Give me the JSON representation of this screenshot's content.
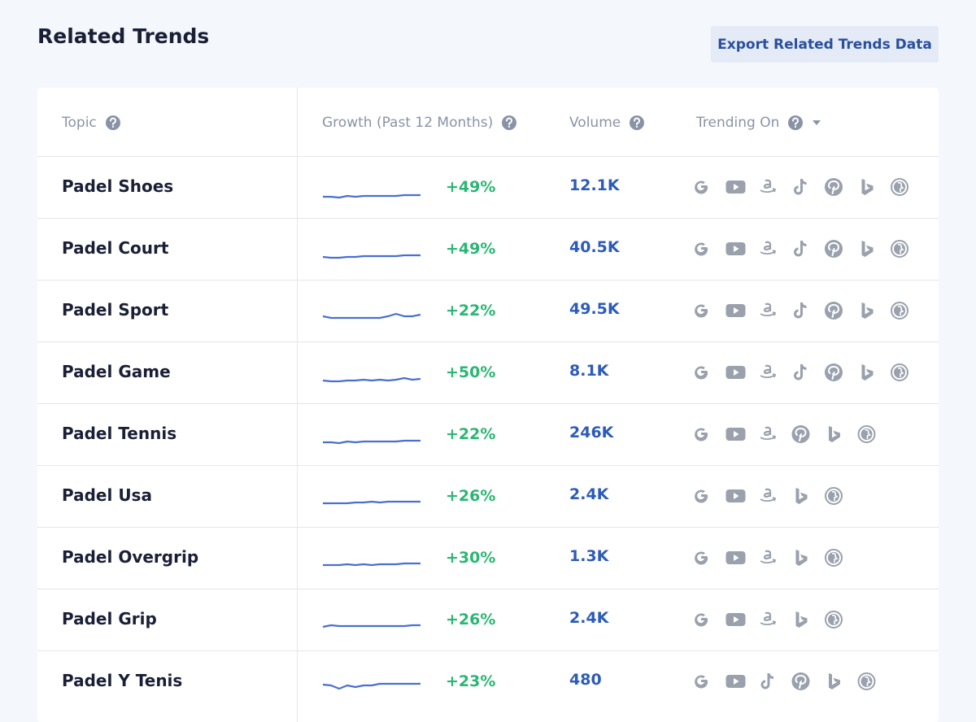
{
  "header": {
    "title": "Related Trends",
    "export_button": "Export Related Trends Data"
  },
  "table": {
    "columns": [
      "Topic",
      "Growth (Past 12 Months)",
      "Volume",
      "Trending On"
    ],
    "rows": [
      {
        "topic": "Padel Shoes",
        "growth": "+49%",
        "volume": "12.1K"
      },
      {
        "topic": "Padel Court",
        "growth": "+49%",
        "volume": "40.5K"
      },
      {
        "topic": "Padel Sport",
        "growth": "+22%",
        "volume": "49.5K"
      },
      {
        "topic": "Padel Game",
        "growth": "+50%",
        "volume": "8.1K"
      },
      {
        "topic": "Padel Tennis",
        "growth": "+22%",
        "volume": "246K"
      },
      {
        "topic": "Padel Usa",
        "growth": "+26%",
        "volume": "2.4K"
      },
      {
        "topic": "Padel Overgrip",
        "growth": "+30%",
        "volume": "1.3K"
      },
      {
        "topic": "Padel Grip",
        "growth": "+26%",
        "volume": "2.4K"
      },
      {
        "topic": "Padel Y Tenis",
        "growth": "+23%",
        "volume": "480"
      }
    ]
  }
}
